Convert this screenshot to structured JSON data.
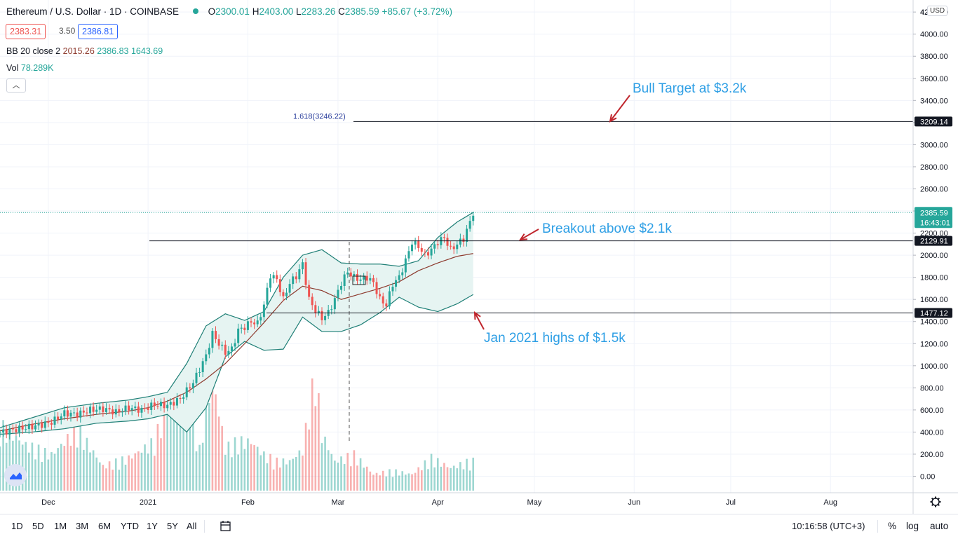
{
  "header": {
    "symbol": "Ethereum / U.S. Dollar · 1D · COINBASE",
    "open_label": "O",
    "open": "2300.01",
    "high_label": "H",
    "high": "2403.00",
    "low_label": "L",
    "low": "2283.26",
    "close_label": "C",
    "close": "2385.59",
    "change": "+85.67 (+3.72%)",
    "bid": "2383.31",
    "spread": "3.50",
    "ask": "2386.81",
    "bb_label": "BB 20 close 2",
    "bb_mid": "2015.26",
    "bb_upper": "2386.83",
    "bb_lower": "1643.69",
    "vol_label": "Vol",
    "vol_value": "78.289K",
    "collapse_icon": "chevron-up-icon",
    "currency": "USD"
  },
  "colors": {
    "up": "#26a69a",
    "down": "#ef5350",
    "basis": "#8d3a2e",
    "band": "#1e7f76",
    "band_fill": "#e6f4f2",
    "annotation_text": "#2e9fe5",
    "arrow": "#c0262d"
  },
  "chart_data": {
    "type": "line",
    "title": "Ethereum / U.S. Dollar · 1D · COINBASE",
    "y_axis_ticks": [
      "0.00",
      "200.00",
      "400.00",
      "600.00",
      "800.00",
      "1000.00",
      "1200.00",
      "1400.00",
      "1600.00",
      "1800.00",
      "2000.00",
      "2200.00",
      "2400.00",
      "2600.00",
      "2800.00",
      "3000.00",
      "3200.00",
      "3400.00",
      "3600.00",
      "3800.00",
      "4000.00",
      "4200.00"
    ],
    "ylim": [
      0,
      4250
    ],
    "x_axis_ticks": [
      "Dec",
      "2021",
      "Feb",
      "Mar",
      "Apr",
      "May",
      "Jun",
      "Jul",
      "Aug"
    ],
    "x_axis_tick_days": [
      15,
      46,
      77,
      105,
      136,
      166,
      197,
      227,
      258
    ],
    "series": [
      {
        "name": "Close",
        "x_days": [
          0,
          4,
          8,
          12,
          16,
          20,
          24,
          28,
          32,
          36,
          40,
          44,
          48,
          52,
          56,
          60,
          64,
          66,
          68,
          70,
          72,
          74,
          76,
          78,
          80,
          82,
          84,
          86,
          88,
          90,
          92,
          94,
          96,
          98,
          100,
          102,
          104,
          106,
          108,
          110,
          112,
          114,
          116,
          118,
          120,
          122,
          124,
          126,
          128,
          130,
          132,
          134,
          136,
          138,
          140,
          142,
          144,
          146,
          147
        ],
        "values": [
          395,
          420,
          440,
          460,
          490,
          570,
          560,
          600,
          610,
          580,
          620,
          600,
          650,
          640,
          700,
          850,
          1090,
          1290,
          1200,
          1120,
          1150,
          1320,
          1350,
          1400,
          1380,
          1550,
          1820,
          1780,
          1600,
          1750,
          1810,
          1920,
          1600,
          1500,
          1430,
          1480,
          1600,
          1750,
          1850,
          1800,
          1780,
          1800,
          1750,
          1600,
          1550,
          1740,
          1800,
          1950,
          2120,
          2080,
          2000,
          2050,
          2120,
          2160,
          2050,
          2100,
          2150,
          2300,
          2385
        ]
      },
      {
        "name": "BB basis",
        "x_days": [
          0,
          10,
          20,
          30,
          40,
          46,
          52,
          58,
          64,
          70,
          76,
          82,
          88,
          94,
          100,
          106,
          112,
          118,
          124,
          130,
          136,
          142,
          147
        ],
        "values": [
          410,
          470,
          520,
          560,
          590,
          620,
          680,
          760,
          880,
          1020,
          1200,
          1390,
          1590,
          1720,
          1680,
          1600,
          1650,
          1700,
          1760,
          1860,
          1930,
          1990,
          2015
        ]
      },
      {
        "name": "BB upper",
        "x_days": [
          0,
          10,
          20,
          30,
          40,
          46,
          52,
          58,
          64,
          70,
          76,
          82,
          88,
          94,
          100,
          106,
          112,
          118,
          124,
          130,
          136,
          142,
          147
        ],
        "values": [
          440,
          530,
          620,
          660,
          690,
          720,
          760,
          1020,
          1360,
          1470,
          1410,
          1490,
          1800,
          2000,
          2050,
          1930,
          1920,
          1920,
          1900,
          1950,
          2160,
          2300,
          2387
        ]
      },
      {
        "name": "BB lower",
        "x_days": [
          0,
          10,
          20,
          30,
          40,
          46,
          52,
          58,
          64,
          70,
          76,
          82,
          88,
          94,
          100,
          106,
          112,
          118,
          124,
          130,
          136,
          142,
          147
        ],
        "values": [
          380,
          400,
          430,
          480,
          500,
          520,
          560,
          400,
          620,
          1080,
          1220,
          1140,
          1150,
          1440,
          1310,
          1310,
          1370,
          1480,
          1620,
          1530,
          1490,
          1560,
          1644
        ]
      },
      {
        "name": "Vol",
        "x_days": [
          0,
          8,
          16,
          24,
          32,
          40,
          48,
          52,
          56,
          58,
          60,
          62,
          64,
          66,
          70,
          74,
          78,
          82,
          86,
          90,
          94,
          96,
          98,
          100,
          104,
          110,
          116,
          122,
          128,
          134,
          140,
          146
        ],
        "values": [
          40,
          28,
          22,
          38,
          15,
          20,
          30,
          55,
          60,
          65,
          45,
          25,
          48,
          70,
          26,
          30,
          30,
          22,
          18,
          18,
          25,
          50,
          72,
          35,
          18,
          22,
          10,
          12,
          10,
          20,
          14,
          18
        ]
      }
    ],
    "horizontal_levels": [
      {
        "price": 3209.14,
        "label": "3209.14",
        "fib_label": "1.618(3246.22)"
      },
      {
        "price": 2129.91,
        "label": "2129.91"
      },
      {
        "price": 1477.12,
        "label": "1477.12"
      }
    ],
    "current_price_label": "2385.59",
    "countdown_label": "16:43:01",
    "annotations": [
      {
        "text": "Bull Target at $3.2k"
      },
      {
        "text": "Breakout above $2.1k"
      },
      {
        "text": "Jan 2021 highs of $1.5k"
      }
    ]
  },
  "toolbar": {
    "timeframes": [
      "1D",
      "5D",
      "1M",
      "3M",
      "6M",
      "YTD",
      "1Y",
      "5Y",
      "All"
    ],
    "calendar_icon": "calendar-range-icon",
    "clock": "10:16:58 (UTC+3)",
    "percent": "%",
    "log": "log",
    "auto": "auto",
    "settings_icon": "gear-icon"
  }
}
